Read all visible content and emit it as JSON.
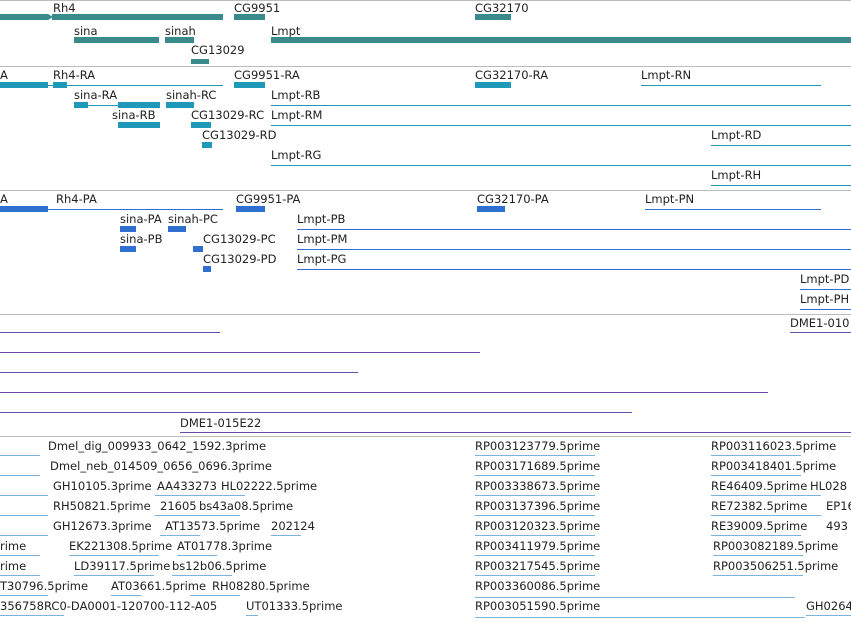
{
  "genes": {
    "rh4": "Rh4",
    "cg9951": "CG9951",
    "cg32170": "CG32170",
    "sina": "sina",
    "sinah": "sinah",
    "lmpt": "Lmpt",
    "cg13029": "CG13029"
  },
  "transcripts": {
    "a": "A",
    "rh4_ra": "Rh4-RA",
    "cg9951_ra": "CG9951-RA",
    "cg32170_ra": "CG32170-RA",
    "lmpt_rn": "Lmpt-RN",
    "sina_ra": "sina-RA",
    "sinah_rc": "sinah-RC",
    "lmpt_rb": "Lmpt-RB",
    "sina_rb": "sina-RB",
    "cg13029_rc": "CG13029-RC",
    "lmpt_rm": "Lmpt-RM",
    "cg13029_rd": "CG13029-RD",
    "lmpt_rd": "Lmpt-RD",
    "lmpt_rg": "Lmpt-RG",
    "lmpt_rh": "Lmpt-RH"
  },
  "proteins": {
    "a": "A",
    "rh4_pa": "Rh4-PA",
    "cg9951_pa": "CG9951-PA",
    "cg32170_pa": "CG32170-PA",
    "lmpt_pn": "Lmpt-PN",
    "sina_pa": "sina-PA",
    "sinah_pc": "sinah-PC",
    "lmpt_pb": "Lmpt-PB",
    "sina_pb": "sina-PB",
    "cg13029_pc": "CG13029-PC",
    "lmpt_pm": "Lmpt-PM",
    "cg13029_pd": "CG13029-PD",
    "lmpt_pg": "Lmpt-PG",
    "lmpt_pd": "Lmpt-PD",
    "lmpt_ph": "Lmpt-PH"
  },
  "clones": {
    "dme1_010": "DME1-010",
    "dme1_015e22": "DME1-015E22"
  },
  "ests": {
    "r1a": "Dmel_dig_009933_0642_1592.3prime",
    "r1b": "RP003123779.5prime",
    "r1c": "RP003116023.5prime",
    "r2a": "Dmel_neb_014509_0656_0696.3prime",
    "r2b": "RP003171689.5prime",
    "r2c": "RP003418401.5prime",
    "r3a": "GH10105.3prime",
    "r3b": "AA433273",
    "r3c": "HL02222.5prime",
    "r3d": "RP003338673.5prime",
    "r3e": "RE46409.5prime",
    "r3f": "HL028",
    "r4a": "RH50821.5prime",
    "r4b": "21605",
    "r4c": "bs43a08.5prime",
    "r4d": "RP003137396.5prime",
    "r4e": "RE72382.5prime",
    "r4f": "EP16",
    "r5a": "GH12673.3prime",
    "r5b": "AT13573.5prime",
    "r5c": "202124",
    "r5d": "RP003120323.5prime",
    "r5e": "RE39009.5prime",
    "r5f": "493",
    "r6a": "rime",
    "r6b": "EK221308.5prime",
    "r6c": "AT01778.3prime",
    "r6d": "RP003411979.5prime",
    "r6e": "RP003082189.5prime",
    "r7a": "rime",
    "r7b": "LD39117.5prime",
    "r7c": "bs12b06.5prime",
    "r7d": "RP003217545.5prime",
    "r7e": "RP003506251.5prime",
    "r8a": "T30796.5prime",
    "r8b": "AT03661.5prime",
    "r8c": "RH08280.5prime",
    "r8d": "RP003360086.5prime",
    "r9a": "356758",
    "r9b": "RC0-DA0001-120700-112-A05",
    "r9c": "UT01333.5prime",
    "r9d": "RP003051590.5prime",
    "r9e": "GH0264"
  },
  "colors": {
    "gene": "#3a8a8c",
    "transcript": "#1e9ab8",
    "protein": "#2f6fd0",
    "clone": "#6a4aa8",
    "est": "#7ab4dc",
    "separator": "#bcbcbc"
  }
}
